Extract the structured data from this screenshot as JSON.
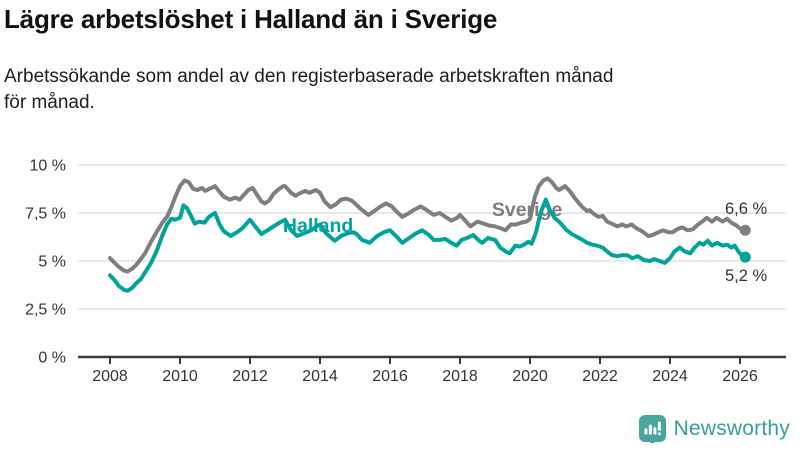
{
  "header": {
    "title": "Lägre arbetslöshet i Halland än i Sverige",
    "subtitle": "Arbetssökande som andel av den registerbaserade arbetskraften månad för månad.",
    "subtitle_lines": [
      "Arbetssökande som andel av den registerbaserade arbetskraften månad",
      "för månad."
    ]
  },
  "footer": {
    "brand": "Newsworthy",
    "brand_color": "#35a199",
    "icon": "newsworthy-speech-bubble-barchart-icon"
  },
  "colors": {
    "sverige_line": "#7f7f7f",
    "halland_line": "#00a49a",
    "gridline": "#dcdcdc",
    "axis": "#3c3c3c",
    "axis_text": "#333333",
    "value_label_text": "#333333"
  },
  "chart_data": {
    "type": "line",
    "title": "Lägre arbetslöshet i Halland än i Sverige",
    "subtitle": "Arbetssökande som andel av den registerbaserade arbetskraften månad för månad.",
    "x_axis": {
      "label": "",
      "ticks": [
        2008,
        2010,
        2012,
        2014,
        2016,
        2018,
        2020,
        2022,
        2024,
        2026
      ],
      "tick_labels": [
        "2008",
        "2010",
        "2012",
        "2014",
        "2016",
        "2018",
        "2020",
        "2022",
        "2024",
        "2026"
      ],
      "range": [
        2008,
        2026.2
      ]
    },
    "y_axis": {
      "label": "",
      "unit": "%",
      "ticks": [
        0,
        2.5,
        5,
        7.5,
        10
      ],
      "tick_labels": [
        "0 %",
        "2,5 %",
        "5 %",
        "7,5 %",
        "10 %"
      ],
      "range": [
        0,
        10
      ]
    },
    "grid": true,
    "legend_position": "inline-labels",
    "series": [
      {
        "name": "Sverige",
        "color": "#7f7f7f",
        "end_value": 6.6,
        "end_label": {
          "text": "6,6 %",
          "x": 2025.57,
          "y": 7.45
        },
        "label": {
          "text": "Sverige",
          "x": 2018.91,
          "y": 7.35
        },
        "points": [
          [
            2008.0,
            5.15
          ],
          [
            2008.13,
            4.9
          ],
          [
            2008.25,
            4.7
          ],
          [
            2008.4,
            4.5
          ],
          [
            2008.5,
            4.45
          ],
          [
            2008.63,
            4.6
          ],
          [
            2008.75,
            4.8
          ],
          [
            2008.88,
            5.1
          ],
          [
            2009.0,
            5.4
          ],
          [
            2009.17,
            6.0
          ],
          [
            2009.33,
            6.5
          ],
          [
            2009.5,
            7.0
          ],
          [
            2009.63,
            7.3
          ],
          [
            2009.75,
            7.8
          ],
          [
            2009.88,
            8.4
          ],
          [
            2010.0,
            8.9
          ],
          [
            2010.13,
            9.2
          ],
          [
            2010.25,
            9.1
          ],
          [
            2010.38,
            8.75
          ],
          [
            2010.5,
            8.7
          ],
          [
            2010.63,
            8.8
          ],
          [
            2010.72,
            8.65
          ],
          [
            2010.83,
            8.75
          ],
          [
            2010.95,
            8.85
          ],
          [
            2011.0,
            8.9
          ],
          [
            2011.13,
            8.6
          ],
          [
            2011.25,
            8.35
          ],
          [
            2011.42,
            8.2
          ],
          [
            2011.58,
            8.3
          ],
          [
            2011.7,
            8.2
          ],
          [
            2011.83,
            8.45
          ],
          [
            2011.95,
            8.7
          ],
          [
            2012.08,
            8.8
          ],
          [
            2012.2,
            8.45
          ],
          [
            2012.33,
            8.1
          ],
          [
            2012.42,
            8.0
          ],
          [
            2012.55,
            8.15
          ],
          [
            2012.67,
            8.5
          ],
          [
            2012.83,
            8.75
          ],
          [
            2012.95,
            8.9
          ],
          [
            2013.0,
            8.9
          ],
          [
            2013.17,
            8.55
          ],
          [
            2013.3,
            8.4
          ],
          [
            2013.45,
            8.55
          ],
          [
            2013.58,
            8.65
          ],
          [
            2013.7,
            8.55
          ],
          [
            2013.88,
            8.7
          ],
          [
            2014.0,
            8.55
          ],
          [
            2014.13,
            8.1
          ],
          [
            2014.3,
            7.8
          ],
          [
            2014.45,
            7.95
          ],
          [
            2014.6,
            8.2
          ],
          [
            2014.75,
            8.25
          ],
          [
            2014.9,
            8.15
          ],
          [
            2015.0,
            8.0
          ],
          [
            2015.17,
            7.7
          ],
          [
            2015.38,
            7.4
          ],
          [
            2015.55,
            7.6
          ],
          [
            2015.7,
            7.8
          ],
          [
            2015.88,
            8.0
          ],
          [
            2016.05,
            7.85
          ],
          [
            2016.2,
            7.55
          ],
          [
            2016.35,
            7.3
          ],
          [
            2016.5,
            7.45
          ],
          [
            2016.67,
            7.65
          ],
          [
            2016.88,
            7.85
          ],
          [
            2017.05,
            7.65
          ],
          [
            2017.25,
            7.4
          ],
          [
            2017.42,
            7.5
          ],
          [
            2017.58,
            7.3
          ],
          [
            2017.75,
            7.1
          ],
          [
            2017.92,
            7.25
          ],
          [
            2018.0,
            7.4
          ],
          [
            2018.17,
            7.05
          ],
          [
            2018.3,
            6.8
          ],
          [
            2018.5,
            7.05
          ],
          [
            2018.67,
            6.95
          ],
          [
            2018.83,
            6.85
          ],
          [
            2019.0,
            6.8
          ],
          [
            2019.17,
            6.7
          ],
          [
            2019.3,
            6.6
          ],
          [
            2019.45,
            6.9
          ],
          [
            2019.6,
            6.9
          ],
          [
            2019.75,
            7.0
          ],
          [
            2019.9,
            7.05
          ],
          [
            2020.0,
            7.2
          ],
          [
            2020.13,
            8.3
          ],
          [
            2020.25,
            8.9
          ],
          [
            2020.38,
            9.2
          ],
          [
            2020.5,
            9.3
          ],
          [
            2020.63,
            9.1
          ],
          [
            2020.75,
            8.8
          ],
          [
            2020.83,
            8.7
          ],
          [
            2020.92,
            8.8
          ],
          [
            2021.0,
            8.9
          ],
          [
            2021.13,
            8.65
          ],
          [
            2021.25,
            8.35
          ],
          [
            2021.38,
            8.05
          ],
          [
            2021.5,
            7.8
          ],
          [
            2021.63,
            7.6
          ],
          [
            2021.7,
            7.65
          ],
          [
            2021.83,
            7.45
          ],
          [
            2021.95,
            7.3
          ],
          [
            2022.08,
            7.35
          ],
          [
            2022.2,
            7.05
          ],
          [
            2022.33,
            6.95
          ],
          [
            2022.5,
            6.8
          ],
          [
            2022.63,
            6.9
          ],
          [
            2022.75,
            6.8
          ],
          [
            2022.9,
            6.9
          ],
          [
            2023.05,
            6.7
          ],
          [
            2023.2,
            6.55
          ],
          [
            2023.38,
            6.3
          ],
          [
            2023.5,
            6.35
          ],
          [
            2023.67,
            6.5
          ],
          [
            2023.8,
            6.6
          ],
          [
            2023.95,
            6.5
          ],
          [
            2024.08,
            6.5
          ],
          [
            2024.2,
            6.65
          ],
          [
            2024.35,
            6.75
          ],
          [
            2024.5,
            6.6
          ],
          [
            2024.65,
            6.65
          ],
          [
            2024.8,
            6.9
          ],
          [
            2024.95,
            7.1
          ],
          [
            2025.05,
            7.25
          ],
          [
            2025.2,
            7.05
          ],
          [
            2025.33,
            7.25
          ],
          [
            2025.5,
            7.05
          ],
          [
            2025.63,
            7.2
          ],
          [
            2025.75,
            7.0
          ],
          [
            2025.9,
            6.85
          ],
          [
            2026.0,
            6.7
          ],
          [
            2026.15,
            6.6
          ]
        ]
      },
      {
        "name": "Halland",
        "color": "#00a49a",
        "end_value": 5.2,
        "end_label": {
          "text": "5,2 %",
          "x": 2025.57,
          "y": 3.95
        },
        "label": {
          "text": "Halland",
          "x": 2012.94,
          "y": 6.5
        },
        "points": [
          [
            2008.0,
            4.25
          ],
          [
            2008.13,
            4.0
          ],
          [
            2008.25,
            3.7
          ],
          [
            2008.4,
            3.5
          ],
          [
            2008.5,
            3.45
          ],
          [
            2008.63,
            3.6
          ],
          [
            2008.75,
            3.85
          ],
          [
            2008.88,
            4.05
          ],
          [
            2009.0,
            4.4
          ],
          [
            2009.17,
            4.9
          ],
          [
            2009.33,
            5.5
          ],
          [
            2009.5,
            6.35
          ],
          [
            2009.63,
            6.9
          ],
          [
            2009.75,
            7.2
          ],
          [
            2009.85,
            7.15
          ],
          [
            2010.0,
            7.25
          ],
          [
            2010.1,
            7.9
          ],
          [
            2010.2,
            7.75
          ],
          [
            2010.3,
            7.4
          ],
          [
            2010.42,
            6.95
          ],
          [
            2010.55,
            7.05
          ],
          [
            2010.7,
            7.0
          ],
          [
            2010.83,
            7.3
          ],
          [
            2010.95,
            7.45
          ],
          [
            2011.0,
            7.5
          ],
          [
            2011.13,
            6.9
          ],
          [
            2011.25,
            6.55
          ],
          [
            2011.45,
            6.3
          ],
          [
            2011.63,
            6.5
          ],
          [
            2011.78,
            6.7
          ],
          [
            2011.9,
            6.95
          ],
          [
            2012.0,
            7.15
          ],
          [
            2012.17,
            6.75
          ],
          [
            2012.33,
            6.4
          ],
          [
            2012.5,
            6.6
          ],
          [
            2012.67,
            6.8
          ],
          [
            2012.85,
            7.0
          ],
          [
            2013.0,
            7.15
          ],
          [
            2013.17,
            6.6
          ],
          [
            2013.35,
            6.3
          ],
          [
            2013.55,
            6.45
          ],
          [
            2013.75,
            6.6
          ],
          [
            2013.9,
            6.8
          ],
          [
            2014.0,
            6.9
          ],
          [
            2014.17,
            6.45
          ],
          [
            2014.42,
            6.05
          ],
          [
            2014.6,
            6.3
          ],
          [
            2014.8,
            6.45
          ],
          [
            2014.95,
            6.5
          ],
          [
            2015.05,
            6.4
          ],
          [
            2015.2,
            6.1
          ],
          [
            2015.42,
            5.95
          ],
          [
            2015.63,
            6.3
          ],
          [
            2015.83,
            6.5
          ],
          [
            2016.0,
            6.6
          ],
          [
            2016.17,
            6.3
          ],
          [
            2016.35,
            5.95
          ],
          [
            2016.55,
            6.2
          ],
          [
            2016.75,
            6.45
          ],
          [
            2016.92,
            6.6
          ],
          [
            2017.08,
            6.4
          ],
          [
            2017.25,
            6.1
          ],
          [
            2017.42,
            6.1
          ],
          [
            2017.58,
            6.15
          ],
          [
            2017.75,
            5.95
          ],
          [
            2017.9,
            5.8
          ],
          [
            2018.05,
            6.1
          ],
          [
            2018.2,
            6.2
          ],
          [
            2018.38,
            6.35
          ],
          [
            2018.55,
            6.05
          ],
          [
            2018.63,
            5.95
          ],
          [
            2018.8,
            6.2
          ],
          [
            2019.0,
            6.1
          ],
          [
            2019.15,
            5.7
          ],
          [
            2019.3,
            5.5
          ],
          [
            2019.42,
            5.4
          ],
          [
            2019.58,
            5.8
          ],
          [
            2019.7,
            5.75
          ],
          [
            2019.83,
            5.85
          ],
          [
            2019.95,
            6.0
          ],
          [
            2020.05,
            5.9
          ],
          [
            2020.17,
            6.5
          ],
          [
            2020.3,
            7.5
          ],
          [
            2020.45,
            8.2
          ],
          [
            2020.58,
            7.6
          ],
          [
            2020.7,
            7.25
          ],
          [
            2020.83,
            7.05
          ],
          [
            2020.95,
            6.8
          ],
          [
            2021.05,
            6.6
          ],
          [
            2021.2,
            6.4
          ],
          [
            2021.35,
            6.25
          ],
          [
            2021.5,
            6.1
          ],
          [
            2021.63,
            5.95
          ],
          [
            2021.78,
            5.85
          ],
          [
            2021.92,
            5.8
          ],
          [
            2022.08,
            5.7
          ],
          [
            2022.2,
            5.5
          ],
          [
            2022.35,
            5.3
          ],
          [
            2022.5,
            5.25
          ],
          [
            2022.63,
            5.3
          ],
          [
            2022.78,
            5.3
          ],
          [
            2022.92,
            5.15
          ],
          [
            2023.08,
            5.25
          ],
          [
            2023.25,
            5.05
          ],
          [
            2023.42,
            5.0
          ],
          [
            2023.55,
            5.1
          ],
          [
            2023.7,
            5.0
          ],
          [
            2023.85,
            4.9
          ],
          [
            2024.0,
            5.15
          ],
          [
            2024.13,
            5.5
          ],
          [
            2024.28,
            5.7
          ],
          [
            2024.42,
            5.5
          ],
          [
            2024.58,
            5.4
          ],
          [
            2024.7,
            5.7
          ],
          [
            2024.85,
            5.95
          ],
          [
            2024.95,
            5.85
          ],
          [
            2025.08,
            6.05
          ],
          [
            2025.2,
            5.8
          ],
          [
            2025.35,
            5.95
          ],
          [
            2025.5,
            5.8
          ],
          [
            2025.63,
            5.85
          ],
          [
            2025.75,
            5.7
          ],
          [
            2025.85,
            5.8
          ],
          [
            2025.95,
            5.5
          ],
          [
            2026.05,
            5.3
          ],
          [
            2026.15,
            5.2
          ]
        ]
      }
    ]
  }
}
